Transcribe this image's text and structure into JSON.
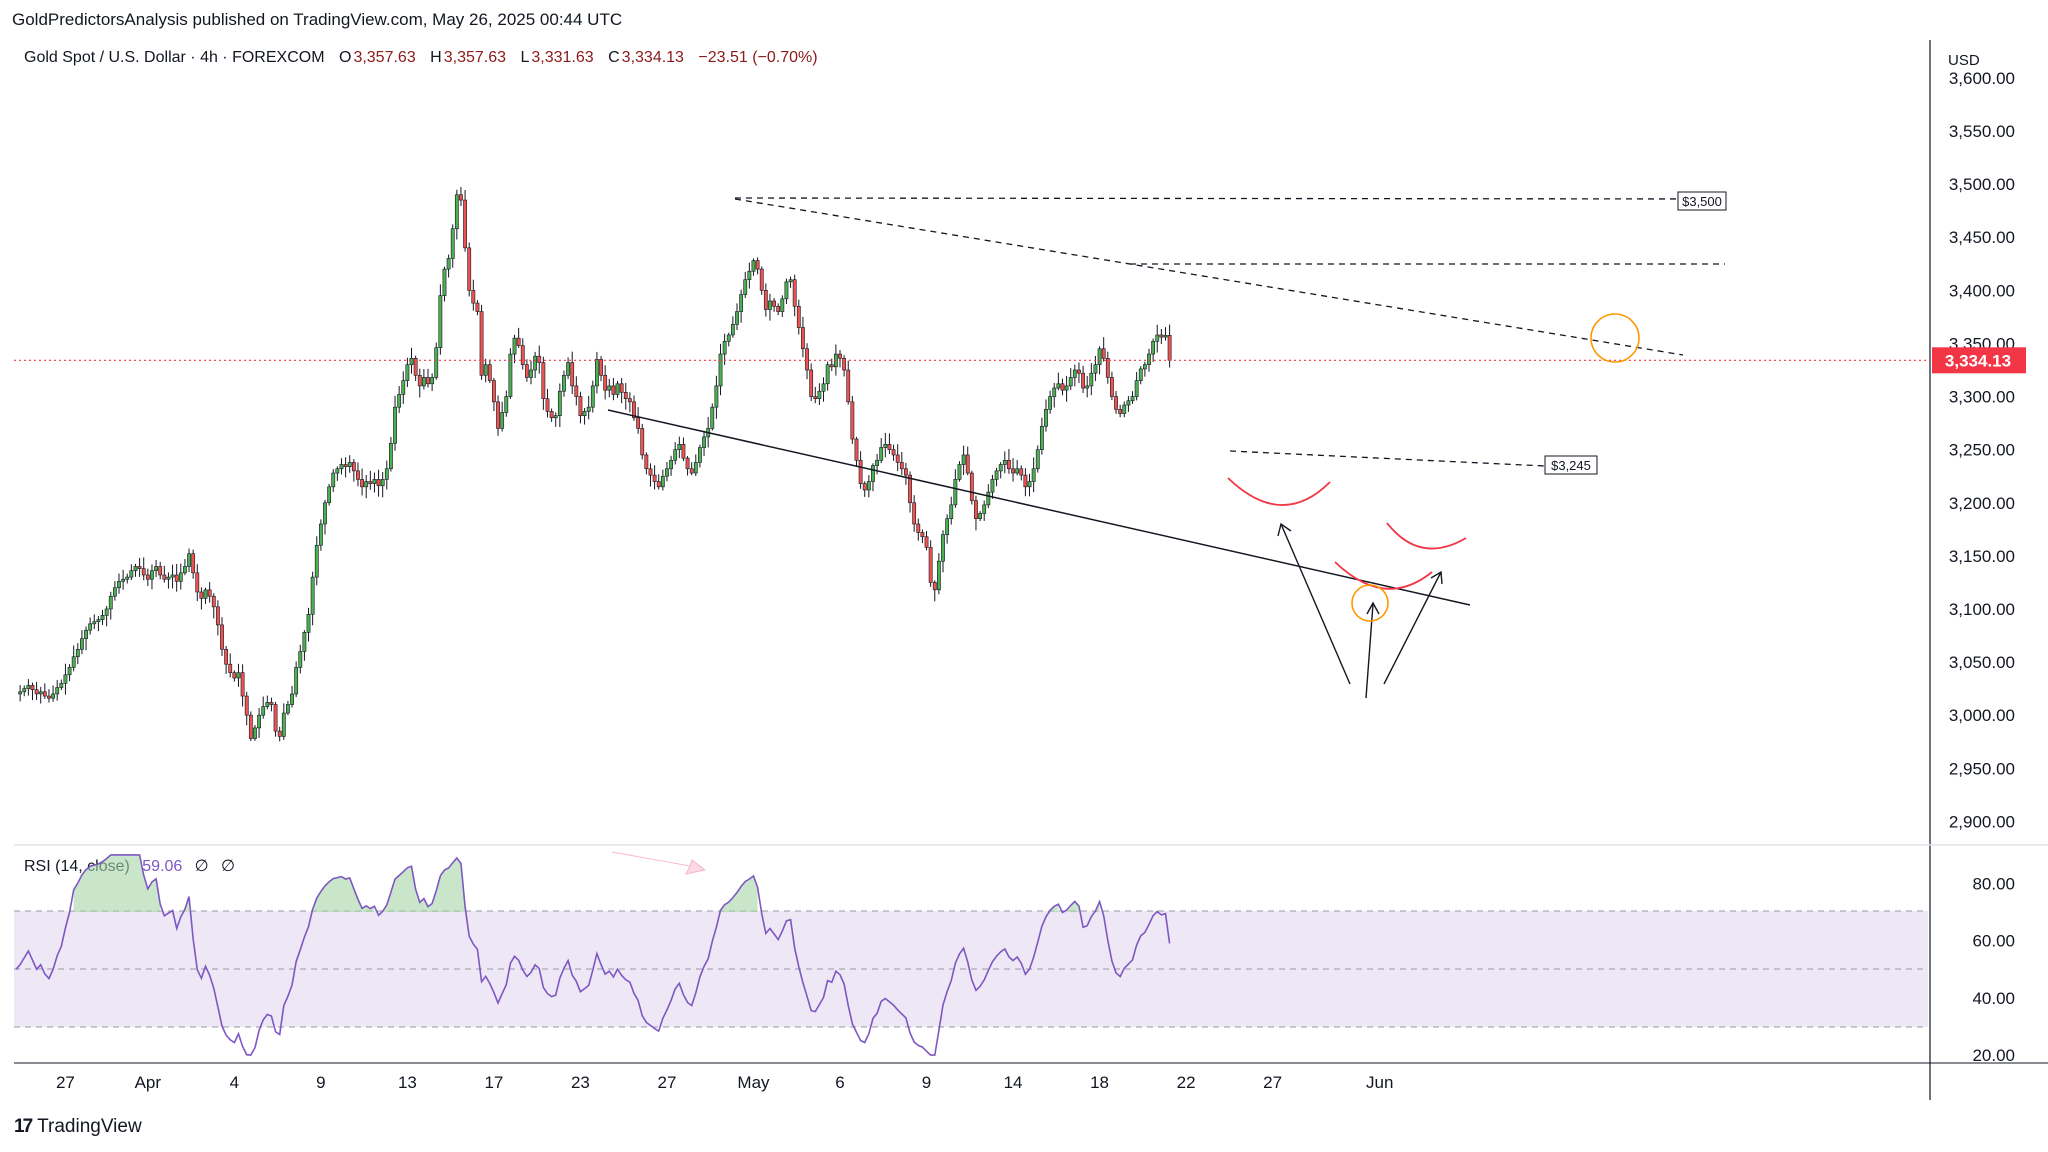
{
  "header": {
    "publisher_line": "GoldPredictorsAnalysis published on TradingView.com, May 26, 2025 00:44 UTC",
    "symbol": "Gold Spot / U.S. Dollar · 4h · FOREXCOM",
    "open_label": "O",
    "open": "3,357.63",
    "high_label": "H",
    "high": "3,357.63",
    "low_label": "L",
    "low": "3,331.63",
    "close_label": "C",
    "close": "3,334.13",
    "change": "−23.51 (−0.70%)"
  },
  "price_axis": {
    "currency": "USD",
    "last_price_label": "3,334.13",
    "last_price_color": "#f23645"
  },
  "rsi_panel": {
    "title": "RSI (14, close)",
    "value": "59.06",
    "na1": "∅",
    "na2": "∅"
  },
  "annotations": {
    "level_3500": "$3,500",
    "level_3245": "$3,245"
  },
  "brand": {
    "logo": "17",
    "name": "TradingView"
  },
  "colors": {
    "up": "#26a69a",
    "up_body": "#4caf50",
    "down": "#ef5350",
    "rsi_line": "#7e57c2",
    "rsi_band": "#ede7f6",
    "price_line": "#f23645"
  },
  "chart_data": [
    {
      "type": "candlestick",
      "title": "Gold Spot / U.S. Dollar · 4h · FOREXCOM",
      "y_axis_ticks": [
        "2,900.00",
        "2,950.00",
        "3,000.00",
        "3,050.00",
        "3,100.00",
        "3,150.00",
        "3,200.00",
        "3,250.00",
        "3,300.00",
        "3,350.00",
        "3,400.00",
        "3,450.00",
        "3,500.00",
        "3,550.00",
        "3,600.00"
      ],
      "ylim": [
        2890,
        3615
      ],
      "x_axis_ticks": [
        "27",
        "Apr",
        "4",
        "9",
        "13",
        "17",
        "23",
        "27",
        "May",
        "6",
        "9",
        "14",
        "18",
        "22",
        "27",
        "Jun"
      ],
      "x_tick_indices": [
        12,
        32,
        53,
        74,
        95,
        116,
        137,
        158,
        179,
        200,
        221,
        242,
        263,
        284,
        305,
        331
      ],
      "last_price": 3334.13,
      "close_series": [
        3020,
        3022,
        3025,
        3028,
        3024,
        3020,
        3022,
        3018,
        3016,
        3020,
        3026,
        3030,
        3038,
        3045,
        3055,
        3062,
        3072,
        3080,
        3086,
        3088,
        3090,
        3094,
        3100,
        3112,
        3120,
        3126,
        3128,
        3130,
        3136,
        3140,
        3138,
        3132,
        3128,
        3136,
        3140,
        3132,
        3128,
        3130,
        3132,
        3126,
        3134,
        3140,
        3152,
        3134,
        3116,
        3110,
        3118,
        3112,
        3102,
        3085,
        3062,
        3048,
        3040,
        3035,
        3040,
        3018,
        3000,
        2978,
        2988,
        3000,
        3008,
        3012,
        3010,
        2985,
        2980,
        3002,
        3010,
        3020,
        3045,
        3060,
        3078,
        3095,
        3130,
        3160,
        3180,
        3200,
        3215,
        3228,
        3232,
        3236,
        3234,
        3238,
        3230,
        3222,
        3215,
        3220,
        3218,
        3222,
        3216,
        3222,
        3232,
        3256,
        3290,
        3302,
        3315,
        3330,
        3336,
        3320,
        3310,
        3318,
        3312,
        3318,
        3346,
        3395,
        3420,
        3430,
        3458,
        3490,
        3485,
        3440,
        3400,
        3388,
        3380,
        3320,
        3330,
        3315,
        3295,
        3270,
        3285,
        3300,
        3340,
        3355,
        3348,
        3330,
        3318,
        3325,
        3338,
        3332,
        3298,
        3286,
        3280,
        3282,
        3305,
        3320,
        3332,
        3310,
        3300,
        3282,
        3286,
        3290,
        3310,
        3335,
        3320,
        3306,
        3310,
        3302,
        3312,
        3304,
        3298,
        3295,
        3280,
        3270,
        3245,
        3232,
        3226,
        3220,
        3215,
        3225,
        3232,
        3240,
        3250,
        3255,
        3242,
        3232,
        3228,
        3238,
        3252,
        3262,
        3270,
        3290,
        3310,
        3340,
        3352,
        3358,
        3368,
        3380,
        3396,
        3410,
        3418,
        3428,
        3420,
        3400,
        3382,
        3390,
        3385,
        3380,
        3392,
        3408,
        3410,
        3385,
        3365,
        3345,
        3325,
        3300,
        3298,
        3305,
        3312,
        3330,
        3328,
        3340,
        3336,
        3325,
        3295,
        3260,
        3240,
        3218,
        3212,
        3220,
        3235,
        3240,
        3252,
        3255,
        3250,
        3245,
        3238,
        3232,
        3226,
        3200,
        3180,
        3172,
        3168,
        3158,
        3125,
        3118,
        3145,
        3170,
        3185,
        3198,
        3222,
        3236,
        3245,
        3228,
        3202,
        3185,
        3190,
        3198,
        3210,
        3222,
        3230,
        3236,
        3240,
        3232,
        3228,
        3232,
        3226,
        3215,
        3220,
        3232,
        3250,
        3272,
        3288,
        3300,
        3308,
        3312,
        3306,
        3310,
        3318,
        3325,
        3322,
        3308,
        3310,
        3322,
        3330,
        3345,
        3336,
        3318,
        3300,
        3288,
        3284,
        3292,
        3296,
        3300,
        3315,
        3326,
        3330,
        3340,
        3352,
        3358,
        3356,
        3357.63,
        3334.13
      ],
      "annotations": [
        {
          "label": "$3,500",
          "price": 3500
        },
        {
          "label": "$3,245",
          "price": 3245
        }
      ]
    },
    {
      "type": "line",
      "title": "RSI (14, close)",
      "value": 59.06,
      "y_axis_ticks": [
        "20.00",
        "40.00",
        "60.00",
        "80.00"
      ],
      "ylim": [
        19,
        91
      ],
      "band": [
        30,
        70
      ],
      "mid": 50
    }
  ]
}
